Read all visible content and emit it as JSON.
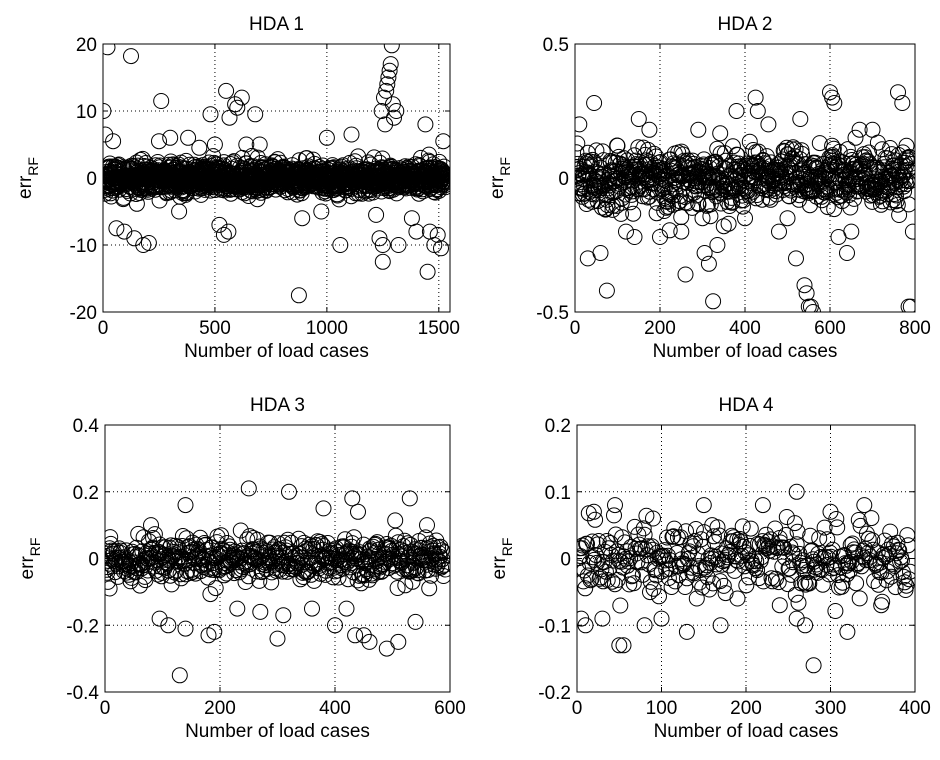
{
  "chart_data": [
    {
      "type": "scatter",
      "title": "HDA 1",
      "xlabel": "Number of load cases",
      "ylabel": "err",
      "ylabel_sub": "RF",
      "xlim": [
        0,
        1550
      ],
      "ylim": [
        -20,
        20
      ],
      "xticks": [
        0,
        500,
        1000,
        1500
      ],
      "yticks": [
        -20,
        -10,
        0,
        10,
        20
      ],
      "xtick_labels": [
        "0",
        "500",
        "1000",
        "1500"
      ],
      "ytick_labels": [
        "-20",
        "-10",
        "0",
        "10",
        "20"
      ],
      "grid": true,
      "marker": "open-circle",
      "n_points": 1520,
      "dense_band": [
        -2,
        2
      ],
      "points": [
        [
          20,
          19.5
        ],
        [
          125,
          18.2
        ],
        [
          1290,
          19.8
        ],
        [
          875,
          -17.5
        ],
        [
          2,
          10
        ],
        [
          10,
          6.5
        ],
        [
          45,
          5.5
        ],
        [
          60,
          -7.5
        ],
        [
          95,
          -8
        ],
        [
          140,
          -9
        ],
        [
          180,
          -10
        ],
        [
          205,
          -9.7
        ],
        [
          260,
          11.5
        ],
        [
          250,
          5.5
        ],
        [
          300,
          6
        ],
        [
          340,
          -5
        ],
        [
          380,
          6
        ],
        [
          430,
          4.5
        ],
        [
          480,
          9.5
        ],
        [
          500,
          5
        ],
        [
          520,
          -7
        ],
        [
          550,
          13
        ],
        [
          565,
          9
        ],
        [
          590,
          11
        ],
        [
          600,
          10.5
        ],
        [
          620,
          12
        ],
        [
          640,
          5
        ],
        [
          680,
          9.5
        ],
        [
          700,
          5
        ],
        [
          540,
          -8.5
        ],
        [
          560,
          -8
        ],
        [
          890,
          -6
        ],
        [
          975,
          -5
        ],
        [
          1000,
          6
        ],
        [
          1060,
          -10
        ],
        [
          1110,
          6.5
        ],
        [
          1220,
          -5.5
        ],
        [
          1235,
          -9
        ],
        [
          1250,
          -10
        ],
        [
          1245,
          10
        ],
        [
          1255,
          12
        ],
        [
          1265,
          13
        ],
        [
          1270,
          14
        ],
        [
          1275,
          15
        ],
        [
          1280,
          16
        ],
        [
          1285,
          17
        ],
        [
          1260,
          8
        ],
        [
          1295,
          11
        ],
        [
          1300,
          9
        ],
        [
          1310,
          10
        ],
        [
          1250,
          -12.5
        ],
        [
          1320,
          -10
        ],
        [
          1380,
          -6
        ],
        [
          1400,
          -8
        ],
        [
          1420,
          3
        ],
        [
          1440,
          8
        ],
        [
          1450,
          -14
        ],
        [
          1460,
          -8
        ],
        [
          1480,
          -10
        ],
        [
          1495,
          -8.5
        ],
        [
          1510,
          -10.5
        ],
        [
          1520,
          5.5
        ]
      ]
    },
    {
      "type": "scatter",
      "title": "HDA 2",
      "xlabel": "Number of load cases",
      "ylabel": "err",
      "ylabel_sub": "RF",
      "xlim": [
        0,
        800
      ],
      "ylim": [
        -0.5,
        0.5
      ],
      "xticks": [
        0,
        200,
        400,
        600,
        800
      ],
      "yticks": [
        -0.5,
        0,
        0.5
      ],
      "xtick_labels": [
        "0",
        "200",
        "400",
        "600",
        "800"
      ],
      "ytick_labels": [
        "-0.5",
        "0",
        "0.5"
      ],
      "grid": true,
      "marker": "open-circle",
      "n_points": 790,
      "dense_band": [
        -0.1,
        0.1
      ],
      "points": [
        [
          10,
          0.2
        ],
        [
          45,
          0.28
        ],
        [
          30,
          -0.3
        ],
        [
          60,
          -0.28
        ],
        [
          75,
          -0.42
        ],
        [
          100,
          0.12
        ],
        [
          120,
          -0.2
        ],
        [
          140,
          -0.22
        ],
        [
          150,
          0.22
        ],
        [
          175,
          0.18
        ],
        [
          200,
          -0.22
        ],
        [
          230,
          -0.1
        ],
        [
          250,
          -0.2
        ],
        [
          260,
          -0.36
        ],
        [
          290,
          0.18
        ],
        [
          300,
          -0.15
        ],
        [
          305,
          -0.28
        ],
        [
          315,
          -0.32
        ],
        [
          325,
          -0.46
        ],
        [
          335,
          -0.25
        ],
        [
          350,
          -0.18
        ],
        [
          380,
          0.25
        ],
        [
          400,
          -0.15
        ],
        [
          425,
          0.3
        ],
        [
          430,
          0.25
        ],
        [
          455,
          0.2
        ],
        [
          480,
          -0.2
        ],
        [
          500,
          -0.15
        ],
        [
          520,
          -0.3
        ],
        [
          530,
          0.22
        ],
        [
          540,
          -0.4
        ],
        [
          545,
          -0.43
        ],
        [
          550,
          -0.48
        ],
        [
          555,
          -0.48
        ],
        [
          560,
          -0.5
        ],
        [
          600,
          0.32
        ],
        [
          605,
          0.3
        ],
        [
          610,
          0.28
        ],
        [
          620,
          -0.22
        ],
        [
          640,
          -0.28
        ],
        [
          650,
          -0.2
        ],
        [
          660,
          0.15
        ],
        [
          700,
          0.18
        ],
        [
          760,
          0.32
        ],
        [
          770,
          0.28
        ],
        [
          785,
          -0.48
        ],
        [
          790,
          -0.48
        ],
        [
          780,
          0.12
        ],
        [
          795,
          -0.2
        ],
        [
          720,
          -0.1
        ]
      ]
    },
    {
      "type": "scatter",
      "title": "HDA 3",
      "xlabel": "Number of load cases",
      "ylabel": "err",
      "ylabel_sub": "RF",
      "xlim": [
        0,
        600
      ],
      "ylim": [
        -0.4,
        0.4
      ],
      "xticks": [
        0,
        200,
        400,
        600
      ],
      "yticks": [
        -0.4,
        -0.2,
        0,
        0.2,
        0.4
      ],
      "xtick_labels": [
        "0",
        "200",
        "400",
        "600"
      ],
      "ytick_labels": [
        "-0.4",
        "-0.2",
        "0",
        "0.2",
        "0.4"
      ],
      "grid": true,
      "marker": "open-circle",
      "n_points": 570,
      "dense_band": [
        -0.06,
        0.06
      ],
      "points": [
        [
          5,
          -0.07
        ],
        [
          8,
          -0.09
        ],
        [
          55,
          -0.04
        ],
        [
          80,
          0.1
        ],
        [
          95,
          -0.18
        ],
        [
          110,
          -0.2
        ],
        [
          130,
          -0.35
        ],
        [
          140,
          -0.21
        ],
        [
          140,
          0.16
        ],
        [
          180,
          -0.23
        ],
        [
          190,
          -0.22
        ],
        [
          250,
          0.21
        ],
        [
          300,
          -0.24
        ],
        [
          310,
          -0.17
        ],
        [
          320,
          0.2
        ],
        [
          360,
          -0.15
        ],
        [
          380,
          0.15
        ],
        [
          400,
          -0.2
        ],
        [
          420,
          -0.15
        ],
        [
          430,
          0.18
        ],
        [
          435,
          -0.23
        ],
        [
          440,
          0.14
        ],
        [
          450,
          -0.23
        ],
        [
          460,
          -0.25
        ],
        [
          490,
          -0.27
        ],
        [
          510,
          -0.25
        ],
        [
          530,
          0.18
        ],
        [
          540,
          -0.19
        ],
        [
          560,
          0.1
        ],
        [
          230,
          -0.15
        ],
        [
          270,
          -0.16
        ]
      ]
    },
    {
      "type": "scatter",
      "title": "HDA 4",
      "xlabel": "Number of load cases",
      "ylabel": "err",
      "ylabel_sub": "RF",
      "xlim": [
        0,
        400
      ],
      "ylim": [
        -0.2,
        0.2
      ],
      "xticks": [
        0,
        100,
        200,
        300,
        400
      ],
      "yticks": [
        -0.2,
        -0.1,
        0,
        0.1,
        0.2
      ],
      "xtick_labels": [
        "0",
        "100",
        "200",
        "300",
        "400"
      ],
      "ytick_labels": [
        "-0.2",
        "-0.1",
        "0",
        "0.1",
        "0.2"
      ],
      "grid": true,
      "marker": "open-circle",
      "n_points": 370,
      "dense_band": [
        -0.05,
        0.05
      ],
      "points": [
        [
          5,
          -0.09
        ],
        [
          10,
          -0.1
        ],
        [
          20,
          0.07
        ],
        [
          30,
          -0.09
        ],
        [
          50,
          -0.13
        ],
        [
          55,
          -0.13
        ],
        [
          80,
          -0.1
        ],
        [
          100,
          -0.09
        ],
        [
          130,
          -0.11
        ],
        [
          150,
          0.08
        ],
        [
          160,
          0.05
        ],
        [
          170,
          -0.1
        ],
        [
          190,
          -0.06
        ],
        [
          220,
          0.08
        ],
        [
          240,
          -0.07
        ],
        [
          260,
          0.1
        ],
        [
          260,
          -0.09
        ],
        [
          270,
          -0.1
        ],
        [
          280,
          -0.16
        ],
        [
          300,
          0.07
        ],
        [
          320,
          -0.11
        ],
        [
          340,
          0.08
        ],
        [
          360,
          -0.07
        ],
        [
          90,
          0.06
        ],
        [
          45,
          0.08
        ]
      ]
    }
  ]
}
